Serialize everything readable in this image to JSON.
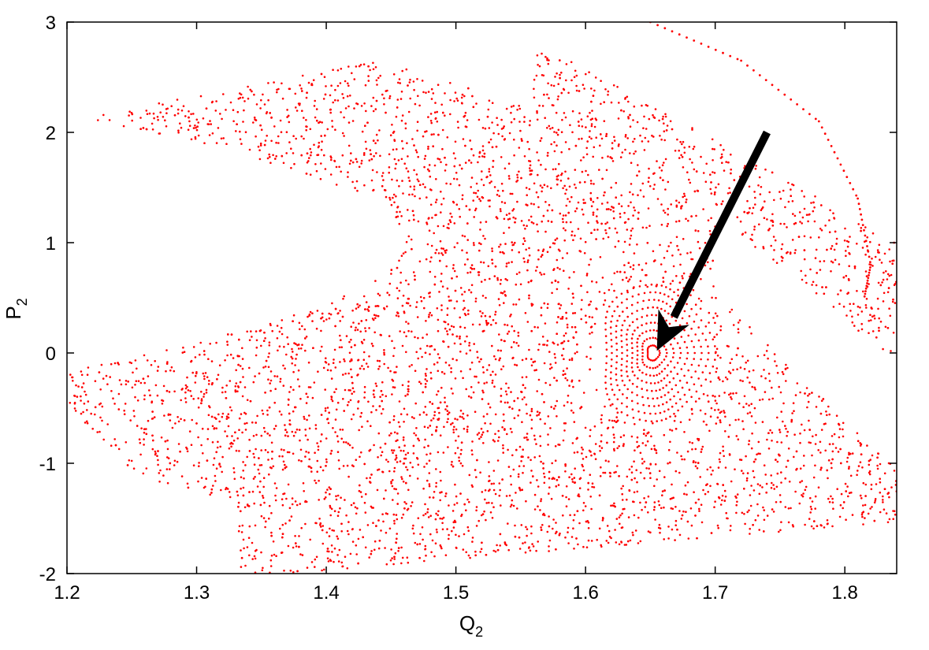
{
  "chart_data": {
    "type": "scatter",
    "title": "",
    "xlabel": "Q",
    "xlabel_subscript": "2",
    "ylabel": "P",
    "ylabel_subscript": "2",
    "xlim": [
      1.2,
      1.84
    ],
    "ylim": [
      -2,
      3
    ],
    "xticks": [
      "1.2",
      "1.3",
      "1.4",
      "1.5",
      "1.6",
      "1.7",
      "1.8"
    ],
    "yticks": [
      "-2",
      "-1",
      "0",
      "1",
      "2",
      "3"
    ],
    "grid": false,
    "legend": "none",
    "point_color": "#ff0000",
    "arrow_color": "#000000",
    "series": [
      {
        "kind": "chaotic-sea",
        "regions": [
          {
            "x": [
              1.2,
              1.84
            ],
            "y_outer": [
              [
                1.2,
                2.1
              ],
              [
                1.35,
                2.3
              ],
              [
                1.55,
                2.9
              ],
              [
                1.75,
                2.0
              ],
              [
                1.82,
                0.9
              ],
              [
                1.84,
                0.7
              ]
            ],
            "y_inner": [
              [
                1.2,
                -0.5
              ],
              [
                1.3,
                -0.75
              ],
              [
                1.4,
                -0.6
              ],
              [
                1.5,
                -0.2
              ],
              [
                1.6,
                0.0
              ]
            ]
          },
          {
            "x": [
              1.2,
              1.84
            ],
            "y_outer": [
              [
                1.2,
                -0.35
              ],
              [
                1.32,
                -2.0
              ],
              [
                1.55,
                -2.1
              ],
              [
                1.84,
                -1.5
              ]
            ]
          }
        ]
      },
      {
        "kind": "regular-island",
        "center": [
          1.652,
          0.0
        ],
        "rx": 0.042,
        "ry": 0.62
      },
      {
        "kind": "boundary-orbit",
        "points": [
          [
            1.65,
            3.0
          ],
          [
            1.72,
            2.65
          ],
          [
            1.78,
            2.1
          ],
          [
            1.81,
            1.4
          ],
          [
            1.82,
            0.8
          ],
          [
            1.815,
            0.5
          ]
        ]
      }
    ],
    "annotations": [
      {
        "type": "arrow",
        "from": [
          1.74,
          2.0
        ],
        "to": [
          1.655,
          0.02
        ]
      }
    ]
  }
}
